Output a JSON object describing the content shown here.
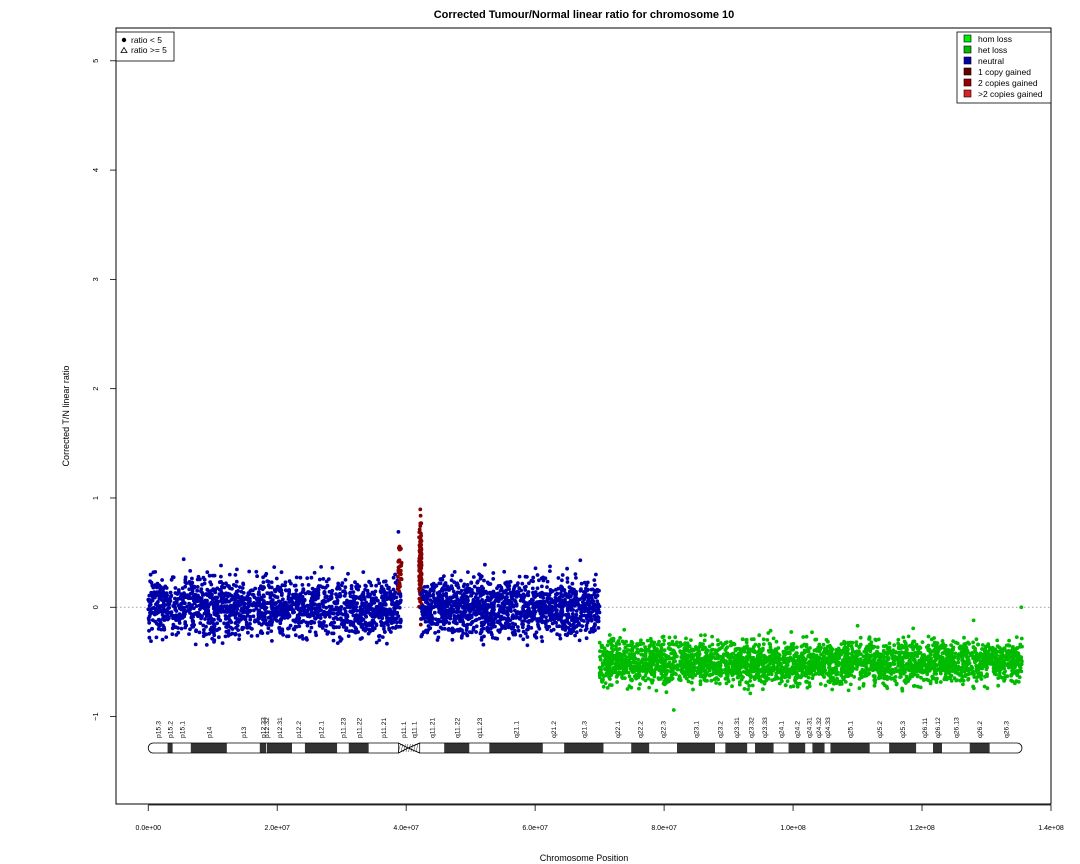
{
  "chart_data": {
    "type": "scatter",
    "title": "Corrected Tumour/Normal linear ratio for chromosome  10",
    "xlabel": "Chromosome Position",
    "ylabel": "Corrected T/N linear ratio",
    "xlim": [
      -5000000,
      140000000
    ],
    "ylim": [
      -1.8,
      5.3
    ],
    "x_ticks": [
      0,
      20000000,
      40000000,
      60000000,
      80000000,
      100000000,
      120000000,
      140000000
    ],
    "x_tick_labels": [
      "0.0e+00",
      "2.0e+07",
      "4.0e+07",
      "6.0e+07",
      "8.0e+07",
      "1.0e+08",
      "1.2e+08",
      "1.4e+08"
    ],
    "y_ticks": [
      -1,
      0,
      1,
      2,
      3,
      4,
      5
    ],
    "y_tick_labels": [
      "−1",
      "0",
      "1",
      "2",
      "3",
      "4",
      "5"
    ],
    "reference_line": {
      "y": 0,
      "style": "dotted",
      "color": "#888888"
    },
    "grid": false,
    "shape_legend": {
      "position": "top-left",
      "entries": [
        {
          "symbol": "filled-circle",
          "label": "ratio < 5"
        },
        {
          "symbol": "open-triangle",
          "label": "ratio >= 5"
        }
      ]
    },
    "legend": {
      "position": "top-right",
      "entries": [
        {
          "label": "hom loss",
          "color": "#00ee00"
        },
        {
          "label": "het loss",
          "color": "#00bb00"
        },
        {
          "label": "neutral",
          "color": "#0000aa"
        },
        {
          "label": "1 copy gained",
          "color": "#660000"
        },
        {
          "label": "2 copies gained",
          "color": "#990000"
        },
        {
          "label": ">2 copies gained",
          "color": "#dd2222"
        }
      ]
    },
    "segments": [
      {
        "state": "neutral",
        "color": "#0000aa",
        "x_start": 0,
        "x_end": 39200000,
        "mean": 0.0,
        "spread": 0.13,
        "n": 1700
      },
      {
        "state": "2 copies gained",
        "color": "#880000",
        "x_start": 38700000,
        "x_end": 39300000,
        "mean": 0.35,
        "spread": 0.12,
        "n": 35
      },
      {
        "state": "2 copies gained",
        "color": "#880000",
        "x_start": 42000000,
        "x_end": 42400000,
        "mean": 0.4,
        "spread": 0.22,
        "n": 110
      },
      {
        "state": "neutral",
        "color": "#0000aa",
        "x_start": 42300000,
        "x_end": 70000000,
        "mean": 0.0,
        "spread": 0.13,
        "n": 1400
      },
      {
        "state": "het loss",
        "color": "#00bb00",
        "x_start": 70000000,
        "x_end": 135500000,
        "mean": -0.5,
        "spread": 0.1,
        "n": 3000
      }
    ],
    "outliers": [
      {
        "x": 800000,
        "y": 0.32,
        "state": "neutral"
      },
      {
        "x": 5500000,
        "y": 0.44,
        "state": "neutral"
      },
      {
        "x": 38800000,
        "y": 0.69,
        "state": "neutral"
      },
      {
        "x": 67000000,
        "y": 0.43,
        "state": "neutral"
      },
      {
        "x": 81500000,
        "y": -0.94,
        "state": "het loss"
      },
      {
        "x": 110000000,
        "y": -0.17,
        "state": "het loss"
      },
      {
        "x": 128000000,
        "y": -0.12,
        "state": "het loss"
      },
      {
        "x": 135400000,
        "y": 0.0,
        "state": "het loss"
      }
    ],
    "ideogram": {
      "bands": [
        {
          "name": "p15.3",
          "start": 0,
          "end": 3000000,
          "stain": "gneg"
        },
        {
          "name": "p15.2",
          "start": 3000000,
          "end": 3800000,
          "stain": "gpos"
        },
        {
          "name": "p15.1",
          "start": 3800000,
          "end": 6600000,
          "stain": "gneg"
        },
        {
          "name": "p14",
          "start": 6600000,
          "end": 12200000,
          "stain": "gpos"
        },
        {
          "name": "p13",
          "start": 12200000,
          "end": 17300000,
          "stain": "gneg"
        },
        {
          "name": "p12.33",
          "start": 17300000,
          "end": 18300000,
          "stain": "gpos"
        },
        {
          "name": "p12.32",
          "start": 18300000,
          "end": 18400000,
          "stain": "gneg"
        },
        {
          "name": "p12.31",
          "start": 18400000,
          "end": 22300000,
          "stain": "gpos"
        },
        {
          "name": "p12.2",
          "start": 22300000,
          "end": 24300000,
          "stain": "gneg"
        },
        {
          "name": "p12.1",
          "start": 24300000,
          "end": 29300000,
          "stain": "gpos"
        },
        {
          "name": "p11.23",
          "start": 29300000,
          "end": 31100000,
          "stain": "gneg"
        },
        {
          "name": "p11.22",
          "start": 31100000,
          "end": 34200000,
          "stain": "gpos"
        },
        {
          "name": "p11.21",
          "start": 34200000,
          "end": 38800000,
          "stain": "gneg"
        },
        {
          "name": "p11.1",
          "start": 38800000,
          "end": 40300000,
          "stain": "acen"
        },
        {
          "name": "q11.1",
          "start": 40300000,
          "end": 42100000,
          "stain": "acen"
        },
        {
          "name": "q11.21",
          "start": 42100000,
          "end": 45900000,
          "stain": "gneg"
        },
        {
          "name": "q11.22",
          "start": 45900000,
          "end": 49800000,
          "stain": "gpos"
        },
        {
          "name": "q11.23",
          "start": 49800000,
          "end": 52900000,
          "stain": "gneg"
        },
        {
          "name": "q21.1",
          "start": 52900000,
          "end": 61200000,
          "stain": "gpos"
        },
        {
          "name": "q21.2",
          "start": 61200000,
          "end": 64500000,
          "stain": "gneg"
        },
        {
          "name": "q21.3",
          "start": 64500000,
          "end": 70600000,
          "stain": "gpos"
        },
        {
          "name": "q22.1",
          "start": 70600000,
          "end": 74900000,
          "stain": "gneg"
        },
        {
          "name": "q22.2",
          "start": 74900000,
          "end": 77700000,
          "stain": "gpos"
        },
        {
          "name": "q22.3",
          "start": 77700000,
          "end": 82000000,
          "stain": "gneg"
        },
        {
          "name": "q23.1",
          "start": 82000000,
          "end": 87900000,
          "stain": "gpos"
        },
        {
          "name": "q23.2",
          "start": 87900000,
          "end": 89500000,
          "stain": "gneg"
        },
        {
          "name": "q23.31",
          "start": 89500000,
          "end": 92900000,
          "stain": "gpos"
        },
        {
          "name": "q23.32",
          "start": 92900000,
          "end": 94100000,
          "stain": "gneg"
        },
        {
          "name": "q23.33",
          "start": 94100000,
          "end": 97000000,
          "stain": "gpos"
        },
        {
          "name": "q24.1",
          "start": 97000000,
          "end": 99300000,
          "stain": "gneg"
        },
        {
          "name": "q24.2",
          "start": 99300000,
          "end": 101900000,
          "stain": "gpos"
        },
        {
          "name": "q24.31",
          "start": 101900000,
          "end": 103000000,
          "stain": "gneg"
        },
        {
          "name": "q24.32",
          "start": 103000000,
          "end": 104900000,
          "stain": "gpos"
        },
        {
          "name": "q24.33",
          "start": 104900000,
          "end": 105800000,
          "stain": "gneg"
        },
        {
          "name": "q25.1",
          "start": 105800000,
          "end": 111900000,
          "stain": "gpos"
        },
        {
          "name": "q25.2",
          "start": 111900000,
          "end": 114900000,
          "stain": "gneg"
        },
        {
          "name": "q25.3",
          "start": 114900000,
          "end": 119100000,
          "stain": "gpos"
        },
        {
          "name": "q26.11",
          "start": 119100000,
          "end": 121700000,
          "stain": "gneg"
        },
        {
          "name": "q26.12",
          "start": 121700000,
          "end": 123100000,
          "stain": "gpos"
        },
        {
          "name": "q26.13",
          "start": 123100000,
          "end": 127400000,
          "stain": "gneg"
        },
        {
          "name": "q26.2",
          "start": 127400000,
          "end": 130500000,
          "stain": "gpos"
        },
        {
          "name": "q26.3",
          "start": 130500000,
          "end": 135500000,
          "stain": "gneg"
        }
      ]
    }
  }
}
